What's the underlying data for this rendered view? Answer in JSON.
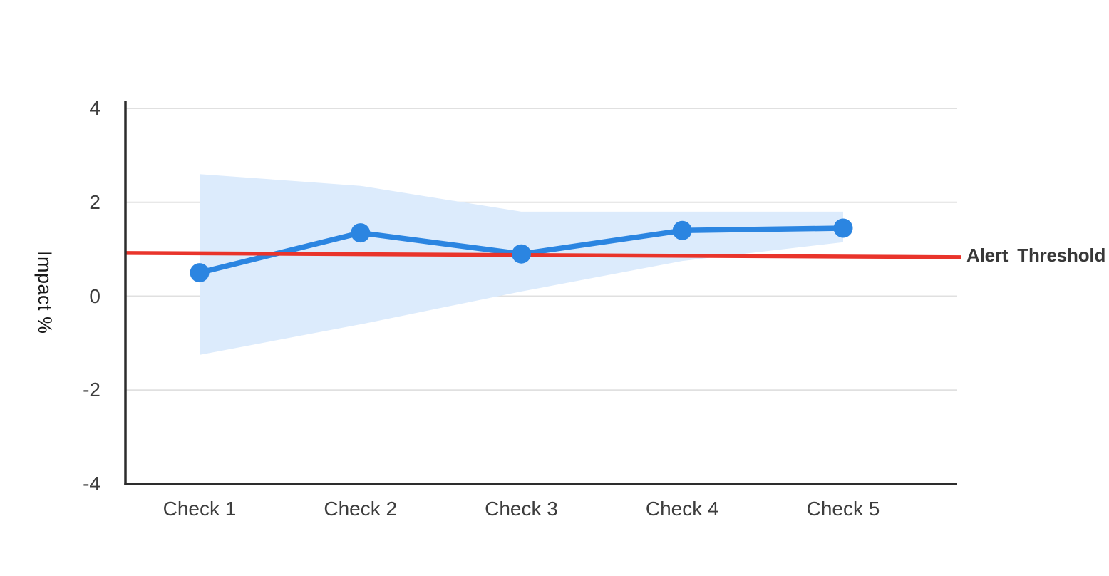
{
  "chart_data": {
    "type": "line",
    "title": "",
    "categories": [
      "Check 1",
      "Check 2",
      "Check 3",
      "Check 4",
      "Check 5"
    ],
    "series": [
      {
        "name": "Impact",
        "values": [
          0.5,
          1.35,
          0.9,
          1.4,
          1.45
        ]
      }
    ],
    "band": {
      "name": "Confidence interval",
      "upper": [
        2.6,
        2.35,
        1.8,
        1.8,
        1.8
      ],
      "lower": [
        -1.25,
        -0.6,
        0.1,
        0.75,
        1.15
      ]
    },
    "threshold": {
      "label": "Alert Threshold",
      "value": 0.9,
      "value_start": 0.92,
      "value_end": 0.83
    },
    "xlabel": "",
    "ylabel": "Impact %",
    "ylim": [
      -4,
      4
    ],
    "yticks": [
      4,
      2,
      0,
      -2,
      -4
    ],
    "grid": true,
    "legend_position": "none"
  },
  "colors": {
    "line": "#2B85E1",
    "point": "#2B85E1",
    "band": "#DCEBFC",
    "threshold": "#E9342B",
    "axis": "#2D2D2D",
    "grid": "#E0E0E0",
    "tick_text": "#3D3D3D",
    "axis_title_text": "#161616",
    "threshold_text": "#383838",
    "background": "#FFFFFF"
  }
}
